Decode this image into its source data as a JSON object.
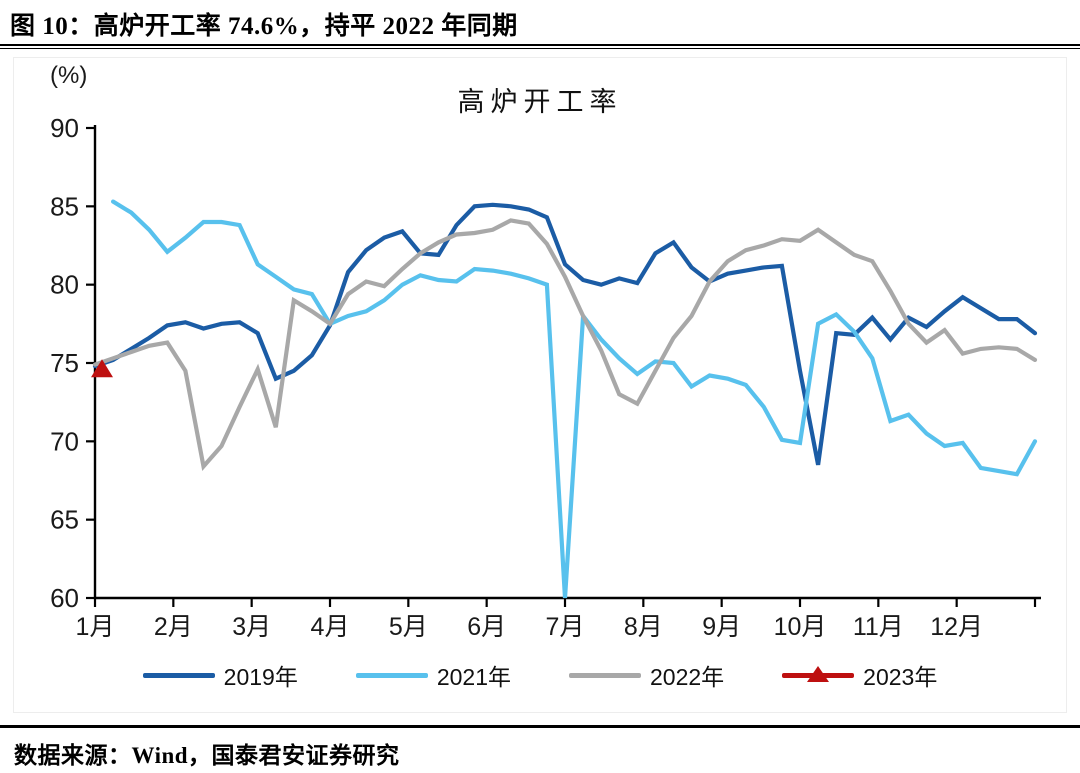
{
  "header": {
    "title": "图 10：高炉开工率 74.6%，持平 2022 年同期"
  },
  "footer": {
    "source": "数据来源：Wind，国泰君安证券研究"
  },
  "chart": {
    "title": "高炉开工率",
    "unit": "(%)",
    "axis_color": "#000000",
    "text_color": "#1a1a1a"
  },
  "chart_data": {
    "type": "line",
    "title": "高炉开工率",
    "ylabel": "(%)",
    "ylim": [
      60,
      90
    ],
    "y_ticks": [
      90,
      85,
      80,
      75,
      70,
      65,
      60
    ],
    "x_tick_labels": [
      "1月",
      "2月",
      "3月",
      "4月",
      "5月",
      "6月",
      "7月",
      "8月",
      "9月",
      "10月",
      "11月",
      "12月"
    ],
    "x_resolution": "weekly (53 points, Jan-Dec)",
    "grid": false,
    "legend_position": "bottom",
    "annotation": "2023年 single point 74.6 at start of January",
    "series": [
      {
        "name": "2019年",
        "color": "#1B5CA5",
        "values": [
          74.8,
          75.2,
          75.9,
          76.6,
          77.4,
          77.6,
          77.2,
          77.5,
          77.6,
          76.9,
          74.0,
          74.5,
          75.5,
          77.4,
          80.8,
          82.2,
          83.0,
          83.4,
          82.0,
          81.9,
          83.8,
          85.0,
          85.1,
          85.0,
          84.8,
          84.3,
          81.3,
          80.3,
          80.0,
          80.4,
          80.1,
          82.0,
          82.7,
          81.1,
          80.2,
          80.7,
          80.9,
          81.1,
          81.2,
          74.5,
          68.5,
          76.9,
          76.8,
          77.9,
          76.5,
          77.9,
          77.3,
          78.3,
          79.2,
          78.5,
          77.8,
          77.8,
          76.9
        ]
      },
      {
        "name": "2021年",
        "color": "#58C1ED",
        "values": [
          null,
          85.3,
          84.6,
          83.5,
          82.1,
          83.0,
          84.0,
          84.0,
          83.8,
          81.3,
          80.5,
          79.7,
          79.4,
          77.5,
          78.0,
          78.3,
          79.0,
          80.0,
          80.6,
          80.3,
          80.2,
          81.0,
          80.9,
          80.7,
          80.4,
          80.0,
          60.0,
          78.0,
          76.5,
          75.3,
          74.3,
          75.1,
          75.0,
          73.5,
          74.2,
          74.0,
          73.6,
          72.2,
          70.1,
          69.9,
          77.5,
          78.1,
          77.0,
          75.3,
          71.3,
          71.7,
          70.5,
          69.7,
          69.9,
          68.3,
          68.1,
          67.9,
          70.0
        ]
      },
      {
        "name": "2022年",
        "color": "#A8A8A8",
        "values": [
          74.9,
          75.3,
          75.7,
          76.1,
          76.3,
          74.5,
          68.4,
          69.7,
          72.2,
          74.6,
          70.9,
          79.0,
          78.3,
          77.5,
          79.4,
          80.2,
          79.9,
          81.0,
          82.0,
          82.7,
          83.2,
          83.3,
          83.5,
          84.1,
          83.9,
          82.6,
          80.5,
          78.0,
          75.8,
          73.0,
          72.4,
          74.5,
          76.6,
          78.0,
          80.2,
          81.5,
          82.2,
          82.5,
          82.9,
          82.8,
          83.5,
          82.7,
          81.9,
          81.5,
          79.6,
          77.5,
          76.3,
          77.1,
          75.6,
          75.9,
          76.0,
          75.9,
          75.2
        ]
      },
      {
        "name": "2023年",
        "color": "#BE1010",
        "marker": "triangle-up",
        "values": [
          74.6
        ]
      }
    ]
  }
}
